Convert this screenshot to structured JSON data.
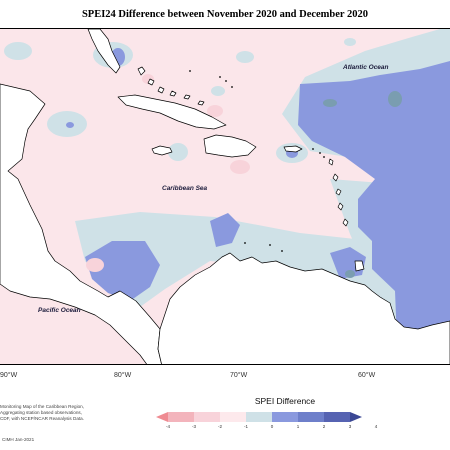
{
  "title": "SPEI24 Difference between November 2020 and December 2020",
  "labels": {
    "atlantic": "Atlantic Ocean",
    "caribbean": "Caribbean Sea",
    "pacific": "Pacific Ocean"
  },
  "longitudes": [
    "90°W",
    "80°W",
    "70°W",
    "60°W"
  ],
  "legend": {
    "title": "SPEI Difference",
    "ticks": [
      "-4",
      "-3",
      "-2",
      "-1",
      "0",
      "1",
      "2",
      "3",
      "4"
    ],
    "colors": [
      "#ef8b92",
      "#f3b4bc",
      "#f8d3da",
      "#fde9ec",
      "#cfe1e7",
      "#8a99de",
      "#6e7fca",
      "#5663b2",
      "#3b4794"
    ]
  },
  "credit": {
    "line1": "Monitoring Map of the Caribbean Region,",
    "line2": "Aggregating station based observations,",
    "line3": "CDF, with NCEP/NCAR Reanalysis Data.",
    "date": "CIMH Jan-2021"
  },
  "palette": {
    "pink": "#fbe6ea",
    "light_blue": "#cfe1e7",
    "blue": "#8a99de",
    "teal": "#7a9db0",
    "land": "#ffffff"
  }
}
